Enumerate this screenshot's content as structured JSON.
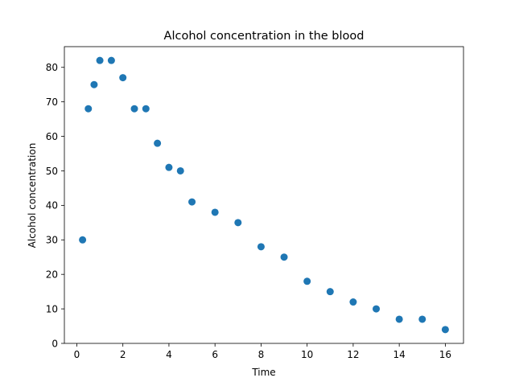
{
  "chart_data": {
    "type": "scatter",
    "title": "Alcohol concentration in the blood",
    "xlabel": "Time",
    "ylabel": "Alcohol concentration",
    "xlim": [
      -0.54,
      16.79
    ],
    "ylim": [
      0,
      86
    ],
    "xticks": [
      0,
      2,
      4,
      6,
      8,
      10,
      12,
      14,
      16
    ],
    "yticks": [
      0,
      10,
      20,
      30,
      40,
      50,
      60,
      70,
      80
    ],
    "grid": false,
    "legend": "none",
    "series": [
      {
        "color": "#1f77b4",
        "x": [
          0.25,
          0.5,
          0.75,
          1,
          1.5,
          2,
          2.5,
          3,
          3.5,
          4,
          4.5,
          5,
          6,
          7,
          8,
          9,
          10,
          11,
          12,
          13,
          14,
          15,
          16
        ],
        "y": [
          30,
          68,
          75,
          82,
          82,
          77,
          68,
          68,
          58,
          51,
          50,
          41,
          38,
          35,
          28,
          25,
          18,
          15,
          12,
          10,
          7,
          7,
          4
        ]
      }
    ]
  }
}
